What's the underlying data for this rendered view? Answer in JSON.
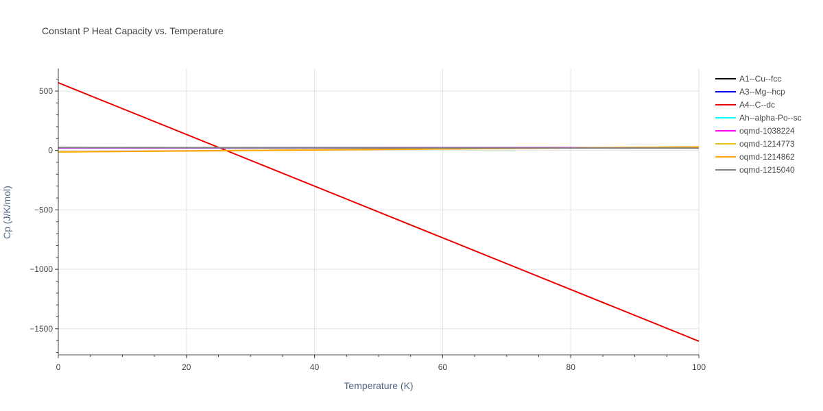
{
  "chart_data": {
    "type": "line",
    "title": "Constant P Heat Capacity vs. Temperature",
    "xlabel": "Temperature (K)",
    "ylabel": "Cp (J/K/mol)",
    "xlim": [
      0,
      100
    ],
    "ylim": [
      -1720,
      690
    ],
    "xticks": [
      0,
      20,
      40,
      60,
      80,
      100
    ],
    "xtick_labels": [
      "0",
      "20",
      "40",
      "60",
      "80",
      "100"
    ],
    "yticks": [
      500,
      0,
      -500,
      -1000,
      -1500
    ],
    "ytick_labels": [
      "500",
      "0",
      "−500",
      "−1000",
      "−1500"
    ],
    "grid": true,
    "legend_position": "right",
    "series": [
      {
        "name": "A1--Cu--fcc",
        "color": "#000000",
        "x": [
          0,
          100
        ],
        "y": [
          22,
          24
        ]
      },
      {
        "name": "A3--Mg--hcp",
        "color": "#0000ff",
        "x": [
          0,
          100
        ],
        "y": [
          22,
          24
        ]
      },
      {
        "name": "A4--C--dc",
        "color": "#ee0000",
        "x": [
          0,
          100
        ],
        "y": [
          570,
          -1605
        ]
      },
      {
        "name": "Ah--alpha-Po--sc",
        "color": "#00ffff",
        "x": [
          0,
          100
        ],
        "y": [
          22,
          24
        ]
      },
      {
        "name": "oqmd-1038224",
        "color": "#ff00ff",
        "x": [
          0,
          100
        ],
        "y": [
          22,
          24
        ]
      },
      {
        "name": "oqmd-1214773",
        "color": "#e6c21a",
        "x": [
          0,
          100
        ],
        "y": [
          -12,
          30
        ]
      },
      {
        "name": "oqmd-1214862",
        "color": "#ffa500",
        "x": [
          0,
          100
        ],
        "y": [
          -12,
          30
        ]
      },
      {
        "name": "oqmd-1215040",
        "color": "#808080",
        "x": [
          0,
          100
        ],
        "y": [
          25,
          20
        ]
      }
    ]
  }
}
